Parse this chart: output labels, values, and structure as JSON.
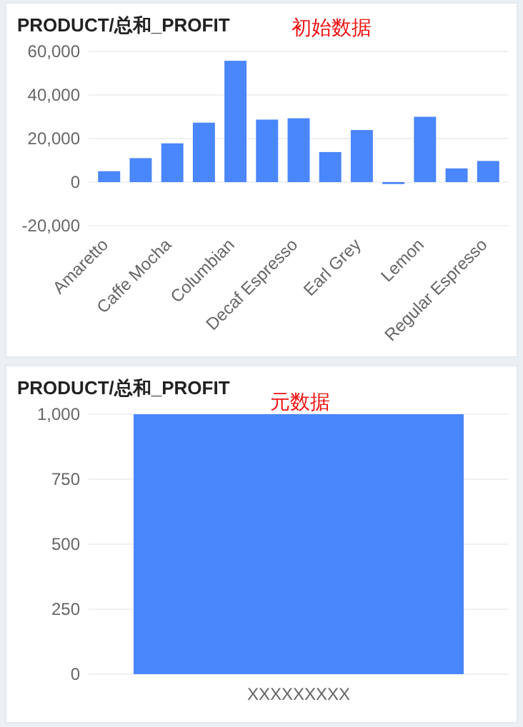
{
  "chart_data": [
    {
      "type": "bar",
      "title": "PRODUCT/总和_PROFIT",
      "annotations": [
        "初始数据"
      ],
      "categories": [
        "Amaretto",
        null,
        "Caffe Mocha",
        null,
        "Columbian",
        null,
        "Decaf Espresso",
        null,
        "Earl Grey",
        null,
        "Lemon",
        null,
        "Regular Espresso"
      ],
      "values": [
        5000,
        11000,
        17800,
        27300,
        55700,
        28700,
        29300,
        13800,
        23900,
        -900,
        30000,
        6300,
        9700
      ],
      "color": "#4a86fc",
      "ylim": [
        -20000,
        60000
      ],
      "yticks": [
        {
          "value": -20000,
          "label": "-20,000"
        },
        0,
        {
          "value": 20000,
          "label": "20,000"
        },
        {
          "value": 40000,
          "label": "40,000"
        },
        {
          "value": 60000,
          "label": "60,000"
        }
      ],
      "grid": "y"
    },
    {
      "type": "bar",
      "title": "PRODUCT/总和_PROFIT",
      "annotations": [
        "元数据"
      ],
      "categories": [
        "XXXXXXXXX"
      ],
      "values": [
        1000
      ],
      "color": "#4a86fc",
      "ylim": [
        0,
        1000
      ],
      "yticks": [
        0,
        250,
        500,
        750,
        {
          "value": 1000,
          "label": "1,000"
        }
      ],
      "grid": "y"
    }
  ]
}
